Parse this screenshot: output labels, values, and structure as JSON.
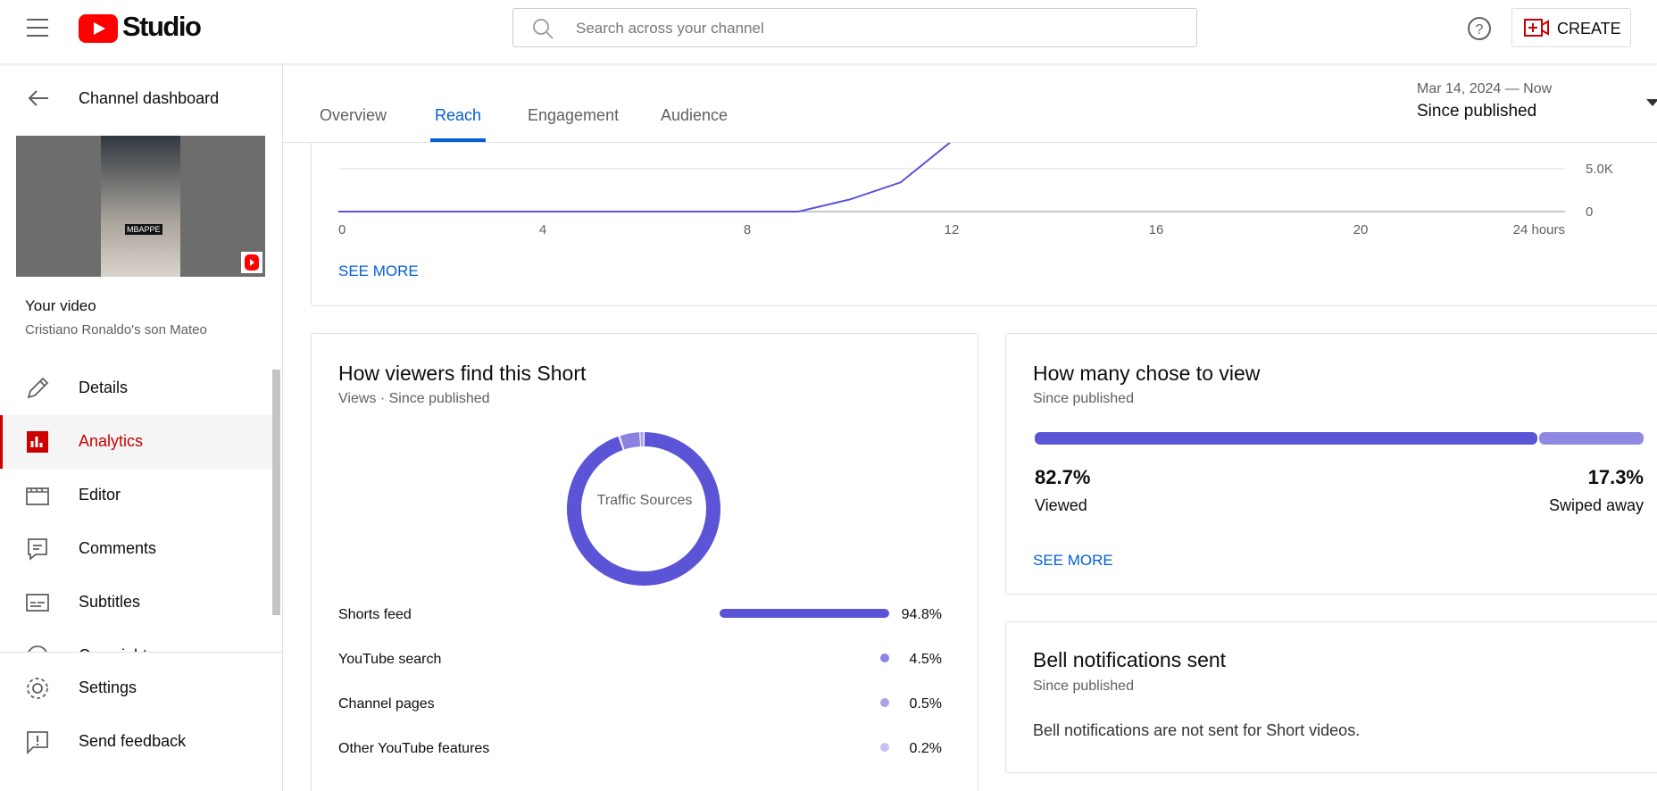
{
  "header": {
    "logo": "Studio",
    "search_placeholder": "Search across your channel",
    "create": "CREATE"
  },
  "sidebar": {
    "back": "Channel dashboard",
    "thumbnail_caption": "MBAPPE",
    "your_video": "Your video",
    "video_title": "Cristiano Ronaldo's son Mateo",
    "menu": [
      "Details",
      "Analytics",
      "Editor",
      "Comments",
      "Subtitles",
      "Copyright"
    ],
    "selected_index": 1,
    "footer": [
      "Settings",
      "Send feedback"
    ]
  },
  "tabs": {
    "items": [
      "Overview",
      "Reach",
      "Engagement",
      "Audience"
    ],
    "selected_index": 1
  },
  "date_range": {
    "range": "Mar 14, 2024 — Now",
    "label": "Since published"
  },
  "views_chart": {
    "type": "line",
    "x": [
      0,
      1,
      2,
      3,
      4,
      5,
      6,
      7,
      8,
      9,
      10,
      11,
      12
    ],
    "values": [
      0,
      0,
      0,
      0,
      0,
      0,
      0,
      0,
      0,
      0,
      1400,
      3400,
      8200
    ],
    "color": "#5c54d6",
    "xlim": [
      0,
      24
    ],
    "ylim": [
      0,
      8000
    ],
    "xticks": [
      0,
      4,
      8,
      12,
      16,
      20,
      {
        "value": 24,
        "label": "24 hours"
      }
    ],
    "yticks": [
      0,
      {
        "value": 5000,
        "label": "5.0K"
      }
    ],
    "grid": true,
    "see_more": "SEE MORE"
  },
  "traffic": {
    "type": "donut",
    "title": "How viewers find this Short",
    "subtitle": "Views · Since published",
    "center_label": "Traffic Sources",
    "categories": [
      "Shorts feed",
      "YouTube search",
      "Channel pages",
      "Other YouTube features"
    ],
    "values": [
      94.8,
      4.5,
      0.5,
      0.2
    ],
    "value_labels": [
      "94.8%",
      "4.5%",
      "0.5%",
      "0.2%"
    ],
    "colors": [
      "#5c54d6",
      "#8a84e0",
      "#a7a3e8",
      "#c5c2f0"
    ]
  },
  "choose": {
    "type": "stacked_bar",
    "title": "How many chose to view",
    "subtitle": "Since published",
    "categories": [
      "Viewed",
      "Swiped away"
    ],
    "values": [
      82.7,
      17.3
    ],
    "value_labels": [
      "82.7%",
      "17.3%"
    ],
    "colors": [
      "#5c54d6",
      "#8f89e2"
    ],
    "see_more": "SEE MORE"
  },
  "bell": {
    "title": "Bell notifications sent",
    "subtitle": "Since published",
    "message": "Bell notifications are not sent for Short videos."
  }
}
